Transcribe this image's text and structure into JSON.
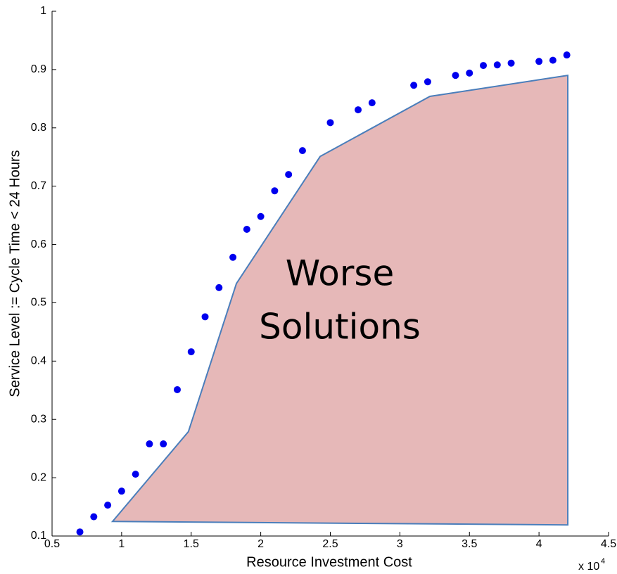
{
  "chart_data": {
    "type": "scatter",
    "x_label": "Resource Investment Cost",
    "y_label": "Service Level := Cycle Time < 24 Hours",
    "x_scale": {
      "base": "x 10",
      "exponent": "4"
    },
    "xlim": [
      0.5,
      4.5
    ],
    "ylim": [
      0.1,
      1
    ],
    "xticks": [
      0.5,
      1,
      1.5,
      2,
      2.5,
      3,
      3.5,
      4,
      4.5
    ],
    "yticks": [
      0.1,
      0.2,
      0.3,
      0.4,
      0.5,
      0.6,
      0.7,
      0.8,
      0.9,
      1
    ],
    "series": [
      {
        "color": "#0000ee",
        "x": [
          0.7,
          0.8,
          0.9,
          1.0,
          1.1,
          1.2,
          1.3,
          1.4,
          1.5,
          1.6,
          1.7,
          1.8,
          1.9,
          2.0,
          2.1,
          2.2,
          2.3,
          2.5,
          2.7,
          2.8,
          3.1,
          3.2,
          3.4,
          3.5,
          3.6,
          3.7,
          3.8,
          4.0,
          4.1,
          4.2
        ],
        "values": [
          0.107,
          0.133,
          0.153,
          0.177,
          0.206,
          0.258,
          0.258,
          0.351,
          0.416,
          0.476,
          0.526,
          0.578,
          0.626,
          0.648,
          0.692,
          0.72,
          0.761,
          0.809,
          0.831,
          0.843,
          0.873,
          0.879,
          0.89,
          0.894,
          0.907,
          0.908,
          0.911,
          0.914,
          0.916,
          0.925
        ]
      }
    ],
    "region": {
      "fill": "#e6b8b8",
      "stroke": "#4a7ebb",
      "x": [
        0.935,
        1.48,
        1.825,
        2.427,
        3.216,
        4.207,
        4.207
      ],
      "values": [
        0.125,
        0.279,
        0.533,
        0.751,
        0.854,
        0.89,
        0.119
      ],
      "label": [
        "Worse",
        "Solutions"
      ]
    }
  }
}
